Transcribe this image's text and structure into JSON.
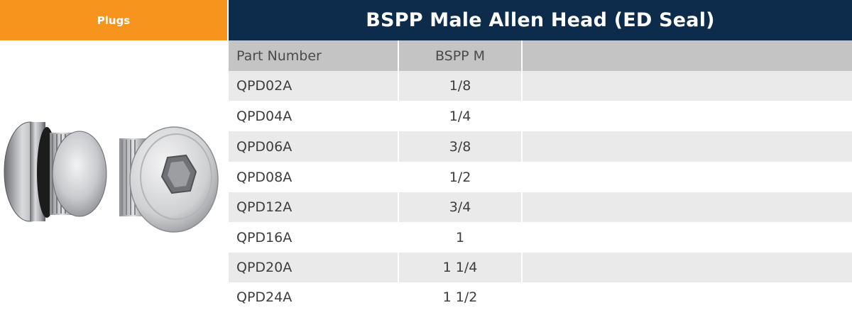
{
  "category": {
    "label": "Plugs"
  },
  "header": {
    "title": "BSPP Male Allen Head (ED Seal)"
  },
  "colors": {
    "category_bg": "#f7941d",
    "title_bg": "#0d2b4a",
    "header_row_bg": "#c4c4c4",
    "stripe_bg": "#eaeaea"
  },
  "product_image": {
    "description": "two-plugs-photo"
  },
  "table": {
    "columns": [
      "Part Number",
      "BSPP M",
      ""
    ],
    "rows": [
      {
        "part": "QPD02A",
        "size": "1/8"
      },
      {
        "part": "QPD04A",
        "size": "1/4"
      },
      {
        "part": "QPD06A",
        "size": "3/8"
      },
      {
        "part": "QPD08A",
        "size": "1/2"
      },
      {
        "part": "QPD12A",
        "size": "3/4"
      },
      {
        "part": "QPD16A",
        "size": "1"
      },
      {
        "part": "QPD20A",
        "size": "1 1/4"
      },
      {
        "part": "QPD24A",
        "size": "1 1/2"
      }
    ]
  }
}
